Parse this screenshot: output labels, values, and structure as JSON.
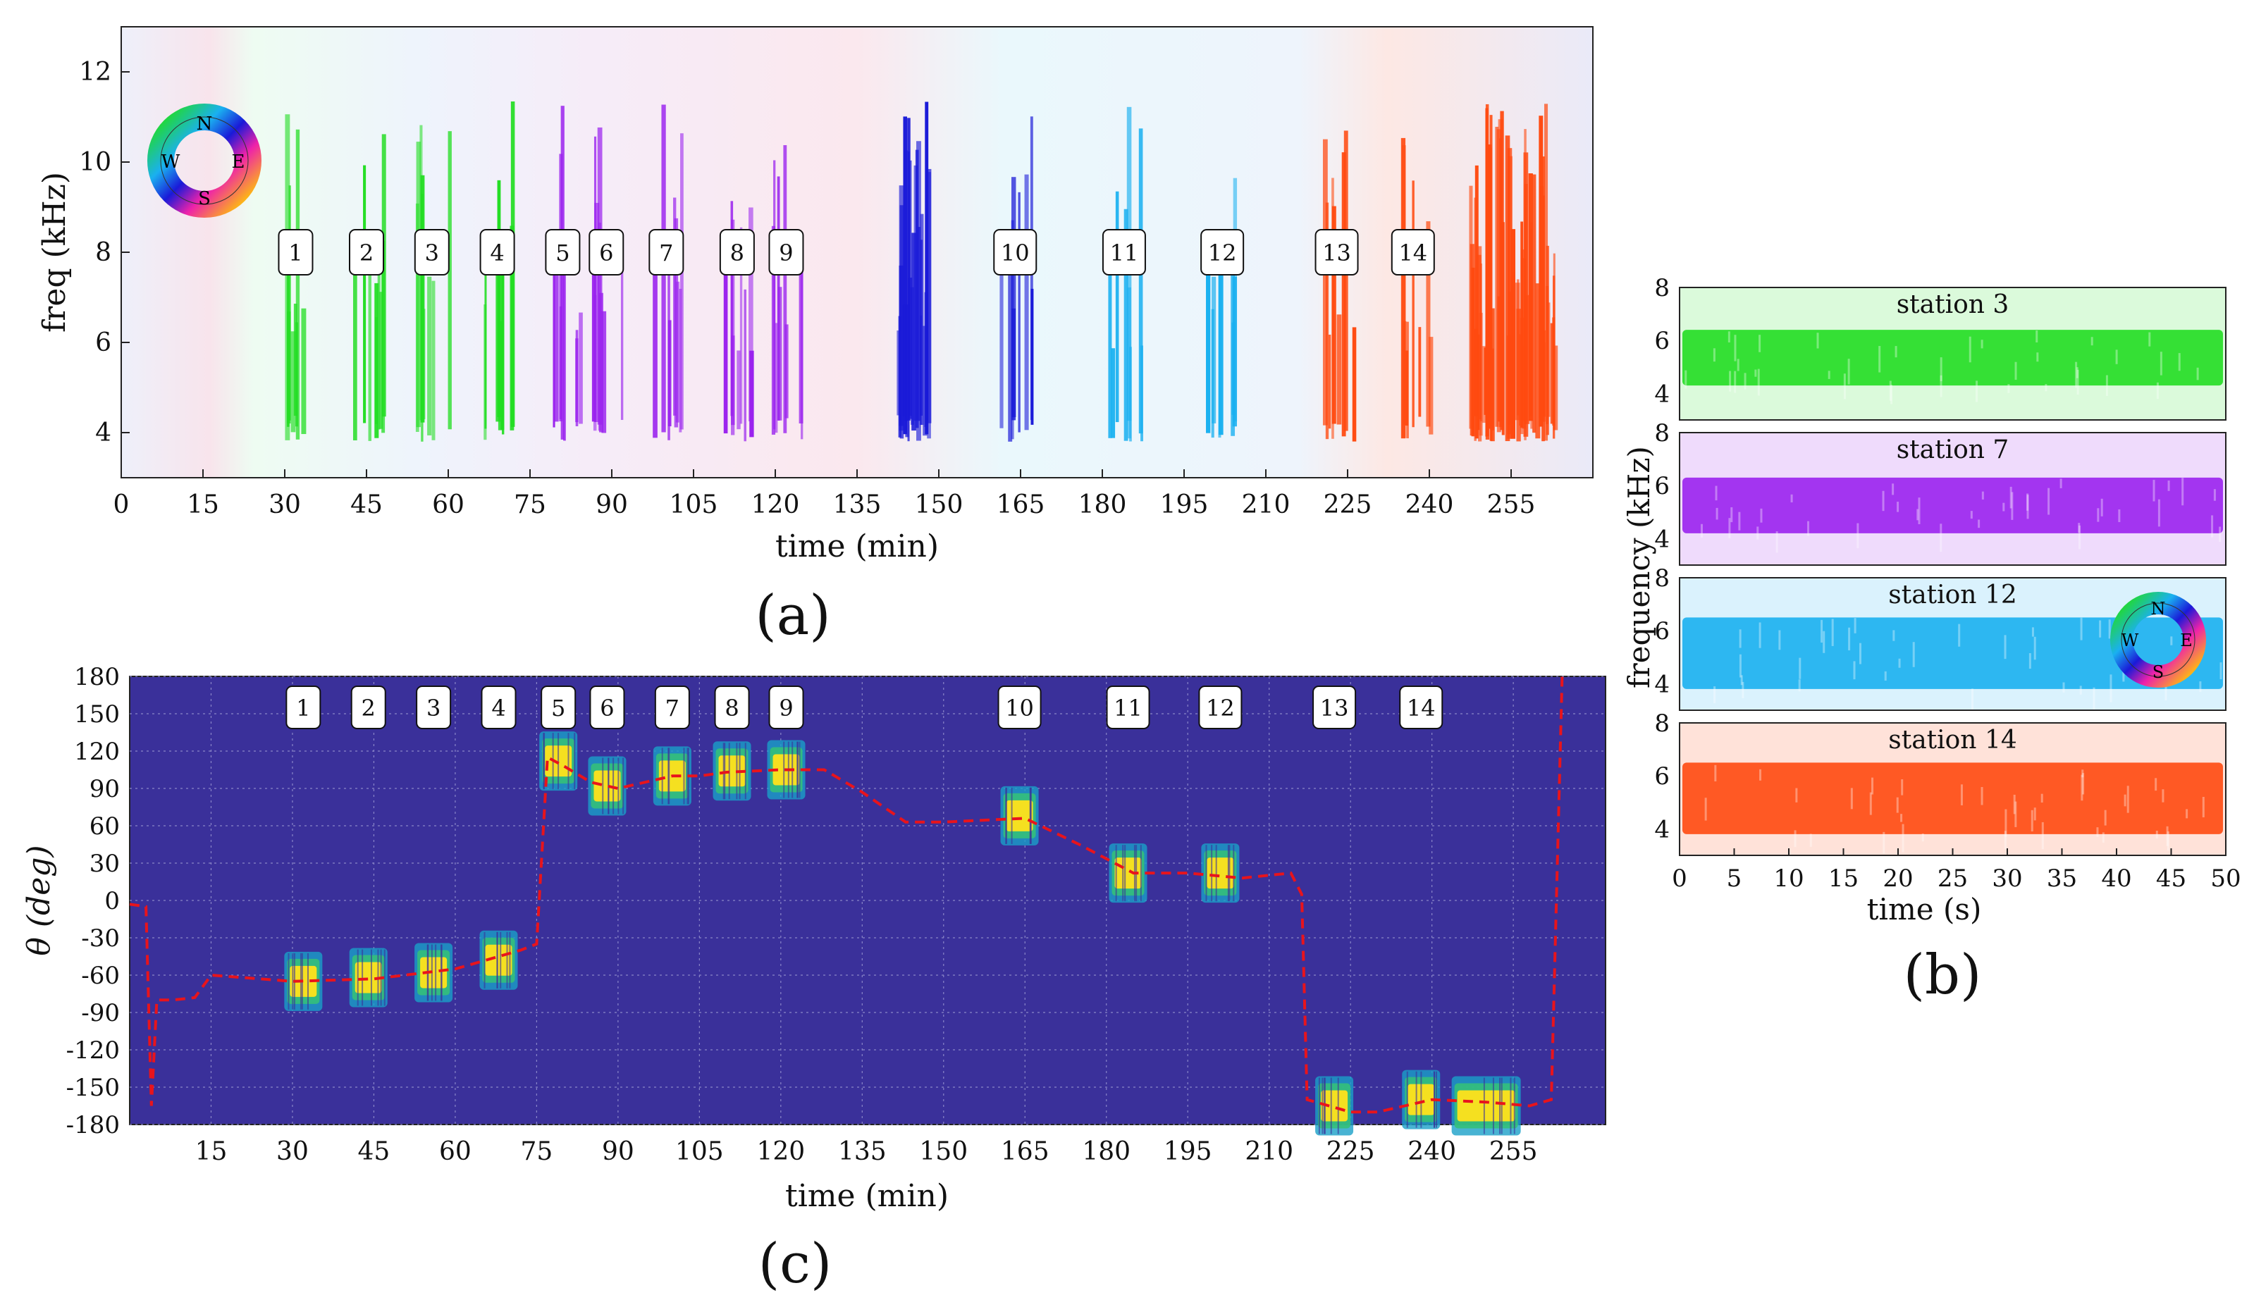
{
  "colors": {
    "station_1_4": "#22dd22",
    "station_5_9": "#9a22ee",
    "station_10": "#1a1ad8",
    "station_11_12": "#1ab0f0",
    "station_13_14": "#ff4a10",
    "theta_background": "#3a309a",
    "track_line": "#e8141c"
  },
  "panel_a": {
    "caption": "(a)",
    "xlabel": "time (min)",
    "ylabel": "freq (kHz)",
    "xticks": [
      "0",
      "15",
      "30",
      "45",
      "60",
      "75",
      "90",
      "105",
      "120",
      "135",
      "150",
      "165",
      "180",
      "195",
      "210",
      "225",
      "240",
      "255"
    ],
    "yticks": [
      "4",
      "6",
      "8",
      "10",
      "12"
    ],
    "compass": {
      "n": "N",
      "e": "E",
      "s": "S",
      "w": "W"
    }
  },
  "panel_b": {
    "caption": "(b)",
    "xlabel": "time (s)",
    "ylabel": "frequency (kHz)",
    "xticks": [
      "0",
      "5",
      "10",
      "15",
      "20",
      "25",
      "30",
      "35",
      "40",
      "45",
      "50"
    ],
    "yticks_top": "8",
    "yticks": [
      "4",
      "6"
    ],
    "compass": {
      "n": "N",
      "e": "E",
      "s": "S",
      "w": "W"
    },
    "stations": [
      {
        "title": "station 3",
        "color": "#22dd22"
      },
      {
        "title": "station 7",
        "color": "#9a22ee"
      },
      {
        "title": "station 12",
        "color": "#1ab0f0"
      },
      {
        "title": "station 14",
        "color": "#ff4a10"
      }
    ]
  },
  "panel_c": {
    "caption": "(c)",
    "xlabel": "time (min)",
    "ylabel": "θ (deg)",
    "xticks": [
      "15",
      "30",
      "45",
      "60",
      "75",
      "90",
      "105",
      "120",
      "135",
      "150",
      "165",
      "180",
      "195",
      "210",
      "225",
      "240",
      "255"
    ],
    "yticks": [
      "180",
      "150",
      "120",
      "90",
      "60",
      "30",
      "0",
      "-30",
      "-60",
      "-90",
      "-120",
      "-150",
      "-180"
    ]
  },
  "chart_data": [
    {
      "type": "heatmap",
      "panel": "a",
      "xlabel": "time (min)",
      "ylabel": "freq (kHz)",
      "xlim": [
        0,
        270
      ],
      "ylim": [
        3,
        13
      ],
      "x_tick_values": [
        0,
        15,
        30,
        45,
        60,
        75,
        90,
        105,
        120,
        135,
        150,
        165,
        180,
        195,
        210,
        225,
        240,
        255
      ],
      "y_tick_values": [
        4,
        6,
        8,
        10,
        12
      ],
      "station_labels": [
        "1",
        "2",
        "3",
        "4",
        "5",
        "6",
        "7",
        "8",
        "9",
        "10",
        "11",
        "12",
        "13",
        "14"
      ],
      "station_times_min": [
        32,
        45,
        57,
        69,
        81,
        89,
        100,
        113,
        122,
        164,
        184,
        202,
        223,
        237
      ],
      "station_colors": [
        "#22dd22",
        "#22dd22",
        "#22dd22",
        "#22dd22",
        "#9a22ee",
        "#9a22ee",
        "#9a22ee",
        "#9a22ee",
        "#9a22ee",
        "#1a1ad8",
        "#1ab0f0",
        "#1ab0f0",
        "#ff4a10",
        "#ff4a10"
      ],
      "extra_bursts_min": [
        [
          143,
          148,
          "#1a1ad8"
        ],
        [
          248,
          262,
          "#ff4a10"
        ]
      ],
      "freq_band_khz": [
        4,
        11.5
      ]
    },
    {
      "type": "heatmap",
      "panel": "b",
      "xlabel": "time (s)",
      "ylabel": "frequency (kHz)",
      "xlim": [
        0,
        50
      ],
      "ylim": [
        3,
        8
      ],
      "x_tick_values": [
        0,
        5,
        10,
        15,
        20,
        25,
        30,
        35,
        40,
        45,
        50
      ],
      "series": [
        {
          "name": "station 3",
          "band_khz": [
            4.3,
            6.4
          ]
        },
        {
          "name": "station 7",
          "band_khz": [
            4.2,
            6.3
          ]
        },
        {
          "name": "station 12",
          "band_khz": [
            3.8,
            6.5
          ]
        },
        {
          "name": "station 14",
          "band_khz": [
            3.8,
            6.5
          ]
        }
      ]
    },
    {
      "type": "line",
      "panel": "c",
      "xlabel": "time (min)",
      "ylabel": "θ (deg)",
      "xlim": [
        0,
        272
      ],
      "ylim": [
        -180,
        180
      ],
      "x_tick_values": [
        15,
        30,
        45,
        60,
        75,
        90,
        105,
        120,
        135,
        150,
        165,
        180,
        195,
        210,
        225,
        240,
        255
      ],
      "y_tick_values": [
        180,
        150,
        120,
        90,
        60,
        30,
        0,
        -30,
        -60,
        -90,
        -120,
        -150,
        -180
      ],
      "grid": true,
      "track": {
        "x": [
          0,
          3,
          4,
          5,
          8,
          12,
          15,
          30,
          45,
          60,
          72,
          75,
          77,
          80,
          85,
          90,
          95,
          100,
          105,
          110,
          120,
          128,
          135,
          143,
          150,
          165,
          175,
          185,
          195,
          205,
          214,
          216,
          217,
          225,
          230,
          240,
          250,
          258,
          262,
          264
        ],
        "y": [
          -3,
          -5,
          -165,
          -80,
          -80,
          -78,
          -60,
          -65,
          -63,
          -55,
          -40,
          -35,
          115,
          108,
          95,
          90,
          95,
          100,
          100,
          103,
          105,
          105,
          87,
          63,
          63,
          66,
          45,
          22,
          22,
          18,
          22,
          5,
          -160,
          -170,
          -170,
          -160,
          -162,
          -165,
          -160,
          180
        ]
      },
      "blobs": [
        {
          "label": "1",
          "x": 32,
          "theta": -65
        },
        {
          "label": "2",
          "x": 44,
          "theta": -62
        },
        {
          "label": "3",
          "x": 56,
          "theta": -58
        },
        {
          "label": "4",
          "x": 68,
          "theta": -48
        },
        {
          "label": "5",
          "x": 79,
          "theta": 112
        },
        {
          "label": "6",
          "x": 88,
          "theta": 92
        },
        {
          "label": "7",
          "x": 100,
          "theta": 100
        },
        {
          "label": "8",
          "x": 111,
          "theta": 104
        },
        {
          "label": "9",
          "x": 121,
          "theta": 105
        },
        {
          "label": "10",
          "x": 164,
          "theta": 68
        },
        {
          "label": "11",
          "x": 184,
          "theta": 22
        },
        {
          "label": "12",
          "x": 201,
          "theta": 22
        },
        {
          "label": "13",
          "x": 222,
          "theta": -165
        },
        {
          "label": "14",
          "x": 238,
          "theta": -160
        },
        {
          "label": "",
          "x": 250,
          "theta": -165
        }
      ]
    }
  ]
}
